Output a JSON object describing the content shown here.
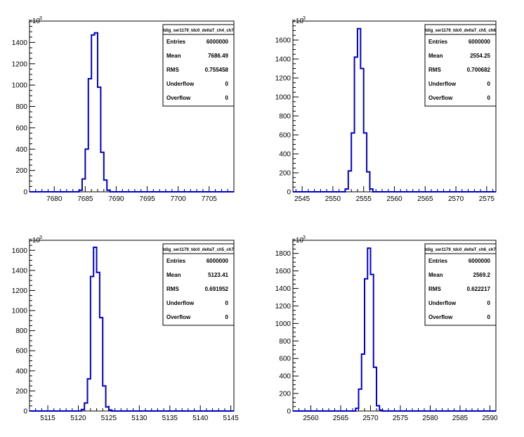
{
  "chart_data": [
    {
      "type": "histogram",
      "title": "tdig_ser1179_tdc0_deltaT_ch4_ch7",
      "xlim": [
        7676,
        7709
      ],
      "ylim": [
        0,
        1600
      ],
      "y_exponent": "×10",
      "y_exponent_power": "3",
      "x_ticks": [
        "7680",
        "7685",
        "7690",
        "7695",
        "7700",
        "7705"
      ],
      "x_tick_values": [
        7680,
        7685,
        7690,
        7695,
        7700,
        7705
      ],
      "y_ticks": [
        "0",
        "200",
        "400",
        "600",
        "800",
        "1000",
        "1200",
        "1400"
      ],
      "y_tick_values": [
        0,
        200,
        400,
        600,
        800,
        1000,
        1200,
        1400
      ],
      "bin_width": 0.5,
      "bin_edges_start": 7684.0,
      "bin_values": [
        15,
        120,
        400,
        1060,
        1470,
        1490,
        980,
        370,
        110,
        15
      ],
      "stats": {
        "entries_label": "Entries",
        "entries": "6000000",
        "mean_label": "Mean",
        "mean": "7686.49",
        "rms_label": "RMS",
        "rms": "0.755458",
        "underflow_label": "Underflow",
        "underflow": "0",
        "overflow_label": "Overflow",
        "overflow": "0"
      }
    },
    {
      "type": "histogram",
      "title": "tdig_ser1179_tdc0_deltaT_ch5_ch6",
      "xlim": [
        2543.5,
        2576.5
      ],
      "ylim": [
        0,
        1800
      ],
      "y_exponent": "×10",
      "y_exponent_power": "3",
      "x_ticks": [
        "2545",
        "2550",
        "2555",
        "2560",
        "2565",
        "2570",
        "2575"
      ],
      "x_tick_values": [
        2545,
        2550,
        2555,
        2560,
        2565,
        2570,
        2575
      ],
      "y_ticks": [
        "0",
        "200",
        "400",
        "600",
        "800",
        "1000",
        "1200",
        "1400",
        "1600"
      ],
      "y_tick_values": [
        0,
        200,
        400,
        600,
        800,
        1000,
        1200,
        1400,
        1600
      ],
      "bin_width": 0.5,
      "bin_edges_start": 2552.0,
      "bin_values": [
        30,
        220,
        620,
        1420,
        1720,
        1300,
        620,
        210,
        30
      ],
      "stats": {
        "entries_label": "Entries",
        "entries": "6000000",
        "mean_label": "Mean",
        "mean": "2554.25",
        "rms_label": "RMS",
        "rms": "0.700682",
        "underflow_label": "Underflow",
        "underflow": "0",
        "overflow_label": "Overflow",
        "overflow": "0"
      }
    },
    {
      "type": "histogram",
      "title": "tdig_ser1179_tdc0_deltaT_ch5_ch7",
      "xlim": [
        5112,
        5145.5
      ],
      "ylim": [
        0,
        1700
      ],
      "y_exponent": "×10",
      "y_exponent_power": "3",
      "x_ticks": [
        "5115",
        "5120",
        "5125",
        "5130",
        "5135",
        "5140",
        "5145"
      ],
      "x_tick_values": [
        5115,
        5120,
        5125,
        5130,
        5135,
        5140,
        5145
      ],
      "y_ticks": [
        "0",
        "200",
        "400",
        "600",
        "800",
        "1000",
        "1200",
        "1400",
        "1600"
      ],
      "y_tick_values": [
        0,
        200,
        400,
        600,
        800,
        1000,
        1200,
        1400,
        1600
      ],
      "bin_width": 0.5,
      "bin_edges_start": 5120.5,
      "bin_values": [
        15,
        80,
        320,
        1340,
        1630,
        1380,
        930,
        250,
        40,
        10
      ],
      "stats": {
        "entries_label": "Entries",
        "entries": "6000000",
        "mean_label": "Mean",
        "mean": "5123.41",
        "rms_label": "RMS",
        "rms": "0.691952",
        "underflow_label": "Underflow",
        "underflow": "0",
        "overflow_label": "Overflow",
        "overflow": "0"
      }
    },
    {
      "type": "histogram",
      "title": "tdig_ser1179_tdc0_deltaT_ch6_ch7",
      "xlim": [
        2557,
        2591
      ],
      "ylim": [
        0,
        1950
      ],
      "y_exponent": "×10",
      "y_exponent_power": "3",
      "x_ticks": [
        "2560",
        "2565",
        "2570",
        "2575",
        "2580",
        "2585",
        "2590"
      ],
      "x_tick_values": [
        2560,
        2565,
        2570,
        2575,
        2580,
        2585,
        2590
      ],
      "y_ticks": [
        "0",
        "200",
        "400",
        "600",
        "800",
        "1000",
        "1200",
        "1400",
        "1600",
        "1800"
      ],
      "y_tick_values": [
        0,
        200,
        400,
        600,
        800,
        1000,
        1200,
        1400,
        1600,
        1800
      ],
      "bin_width": 0.5,
      "bin_edges_start": 2567.5,
      "bin_values": [
        30,
        250,
        650,
        1510,
        1860,
        1560,
        500,
        60,
        10
      ],
      "stats": {
        "entries_label": "Entries",
        "entries": "6000000",
        "mean_label": "Mean",
        "mean": "2569.2",
        "rms_label": "RMS",
        "rms": "0.622217",
        "underflow_label": "Underflow",
        "underflow": "0",
        "overflow_label": "Overflow",
        "overflow": "0"
      }
    }
  ]
}
